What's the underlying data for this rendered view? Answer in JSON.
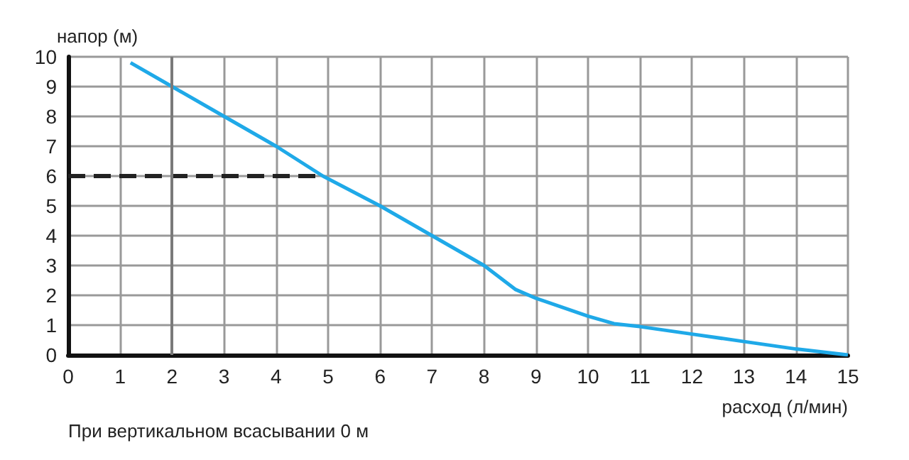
{
  "chart_data": {
    "type": "line",
    "xlabel": "расход (л/мин)",
    "ylabel": "напор (м)",
    "series": [
      {
        "color": "#1fa9e8",
        "x": [
          1.2,
          2,
          3,
          4,
          4.9,
          6,
          7,
          8,
          8.6,
          9,
          10,
          10.5,
          11,
          12,
          13,
          14,
          15
        ],
        "values": [
          9.8,
          9,
          8,
          7,
          6,
          5,
          4,
          3,
          2.2,
          1.9,
          1.3,
          1.05,
          0.95,
          0.7,
          0.45,
          0.2,
          0
        ]
      },
      {
        "color": "#222222",
        "line_style": "dashed",
        "x": [
          0,
          4.9
        ],
        "values": [
          6,
          6
        ]
      }
    ],
    "xlim": [
      0,
      15
    ],
    "ylim": [
      0,
      10
    ],
    "xticks": [
      0,
      1,
      2,
      3,
      4,
      5,
      6,
      7,
      8,
      9,
      10,
      11,
      12,
      13,
      14,
      15
    ],
    "yticks": [
      0,
      1,
      2,
      3,
      4,
      5,
      6,
      7,
      8,
      9,
      10
    ],
    "grid": true,
    "marker": "none",
    "ref_lines": [
      {
        "axis": "x",
        "value": 2,
        "color": "#7a7a7a"
      }
    ],
    "annotations": [
      "При вертикальном всасывании 0 м"
    ]
  }
}
